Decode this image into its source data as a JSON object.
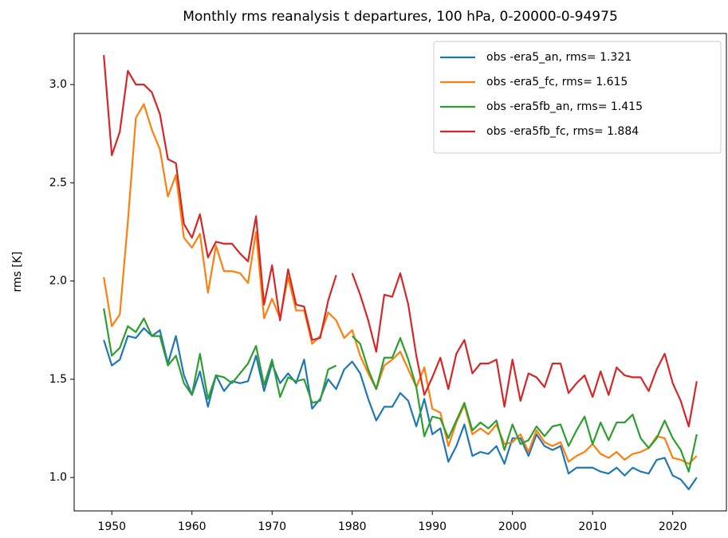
{
  "chart_data": {
    "type": "line",
    "title": "Monthly rms reanalysis t departures, 100 hPa, 0-20000-0-94975",
    "y_label": "rms [K]",
    "x": [
      1949,
      1950,
      1951,
      1952,
      1953,
      1954,
      1955,
      1956,
      1957,
      1958,
      1959,
      1960,
      1961,
      1962,
      1963,
      1964,
      1965,
      1966,
      1967,
      1968,
      1969,
      1970,
      1971,
      1972,
      1973,
      1974,
      1975,
      1976,
      1977,
      1978,
      1979,
      1980,
      1981,
      1982,
      1983,
      1984,
      1985,
      1986,
      1987,
      1988,
      1989,
      1990,
      1991,
      1992,
      1993,
      1994,
      1995,
      1996,
      1997,
      1998,
      1999,
      2000,
      2001,
      2002,
      2003,
      2004,
      2005,
      2006,
      2007,
      2008,
      2009,
      2010,
      2011,
      2012,
      2013,
      2014,
      2015,
      2016,
      2017,
      2018,
      2019,
      2020,
      2021,
      2022,
      2023
    ],
    "series": [
      {
        "name": "obs -era5_an, rms= 1.321",
        "color": "#1f77b4",
        "values": [
          1.7,
          1.57,
          1.6,
          1.72,
          1.71,
          1.76,
          1.72,
          1.75,
          1.58,
          1.72,
          1.52,
          1.42,
          1.54,
          1.36,
          1.52,
          1.44,
          1.49,
          1.48,
          1.49,
          1.62,
          1.44,
          1.58,
          1.48,
          1.53,
          1.48,
          1.6,
          1.35,
          1.4,
          1.5,
          1.45,
          1.55,
          1.59,
          1.53,
          1.4,
          1.29,
          1.36,
          1.36,
          1.43,
          1.39,
          1.26,
          1.4,
          1.22,
          1.25,
          1.08,
          1.16,
          1.27,
          1.11,
          1.13,
          1.12,
          1.16,
          1.07,
          1.2,
          1.2,
          1.11,
          1.22,
          1.16,
          1.14,
          1.16,
          1.02,
          1.05,
          1.05,
          1.05,
          1.03,
          1.02,
          1.05,
          1.01,
          1.05,
          1.03,
          1.02,
          1.09,
          1.1,
          1.01,
          0.99,
          0.94,
          1.0
        ]
      },
      {
        "name": "obs -era5_fc, rms= 1.615",
        "color": "#ff7f0e",
        "values": [
          2.02,
          1.77,
          1.83,
          2.3,
          2.83,
          2.9,
          2.77,
          2.67,
          2.43,
          2.54,
          2.22,
          2.17,
          2.24,
          1.94,
          2.18,
          2.05,
          2.05,
          2.04,
          1.99,
          2.25,
          1.81,
          1.91,
          1.81,
          2.02,
          1.85,
          1.85,
          1.68,
          1.72,
          1.84,
          1.8,
          1.71,
          1.75,
          1.62,
          1.53,
          1.45,
          1.57,
          1.6,
          1.64,
          1.55,
          1.46,
          1.56,
          1.35,
          1.33,
          1.16,
          1.28,
          1.37,
          1.22,
          1.25,
          1.22,
          1.27,
          1.17,
          1.18,
          1.22,
          1.13,
          1.24,
          1.18,
          1.16,
          1.18,
          1.08,
          1.11,
          1.13,
          1.17,
          1.12,
          1.1,
          1.13,
          1.09,
          1.12,
          1.13,
          1.15,
          1.21,
          1.2,
          1.1,
          1.09,
          1.07,
          1.11
        ]
      },
      {
        "name": "obs -era5fb_an, rms= 1.415",
        "color": "#2ca02c",
        "values": [
          1.86,
          1.62,
          1.66,
          1.77,
          1.74,
          1.81,
          1.72,
          1.72,
          1.57,
          1.62,
          1.48,
          1.42,
          1.63,
          1.4,
          1.52,
          1.51,
          1.48,
          1.53,
          1.58,
          1.67,
          1.47,
          1.6,
          1.41,
          1.51,
          1.49,
          1.5,
          1.38,
          1.39,
          1.55,
          1.57,
          null,
          1.72,
          1.68,
          1.55,
          1.45,
          1.61,
          1.61,
          1.71,
          1.6,
          1.46,
          1.21,
          1.31,
          1.3,
          1.2,
          1.29,
          1.38,
          1.24,
          1.28,
          1.25,
          1.29,
          1.14,
          1.27,
          1.17,
          1.19,
          1.26,
          1.21,
          1.26,
          1.27,
          1.16,
          1.24,
          1.31,
          1.17,
          1.28,
          1.19,
          1.28,
          1.28,
          1.32,
          1.2,
          1.15,
          1.2,
          1.29,
          1.2,
          1.14,
          1.03,
          1.22
        ]
      },
      {
        "name": "obs -era5fb_fc, rms= 1.884",
        "color": "#d62728",
        "values": [
          3.15,
          2.64,
          2.76,
          3.07,
          3.0,
          3.0,
          2.96,
          2.85,
          2.62,
          2.6,
          2.29,
          2.22,
          2.34,
          2.12,
          2.2,
          2.19,
          2.19,
          2.14,
          2.1,
          2.33,
          1.88,
          2.08,
          1.8,
          2.06,
          1.88,
          1.87,
          1.7,
          1.71,
          1.9,
          2.03,
          null,
          2.04,
          1.93,
          1.8,
          1.64,
          1.93,
          1.92,
          2.04,
          1.88,
          1.62,
          1.42,
          1.51,
          1.61,
          1.45,
          1.63,
          1.7,
          1.53,
          1.58,
          1.58,
          1.6,
          1.36,
          1.6,
          1.39,
          1.53,
          1.51,
          1.46,
          1.58,
          1.58,
          1.43,
          1.48,
          1.52,
          1.41,
          1.54,
          1.42,
          1.56,
          1.52,
          1.51,
          1.51,
          1.44,
          1.55,
          1.63,
          1.48,
          1.39,
          1.26,
          1.49
        ]
      }
    ],
    "xlim": [
      1945.3,
      2026.7
    ],
    "xticks": [
      1950,
      1960,
      1970,
      1980,
      1990,
      2000,
      2010,
      2020
    ],
    "ylim": [
      0.83,
      3.26
    ],
    "yticks": [
      {
        "value": 1.0,
        "label": "1.0"
      },
      {
        "value": 1.5,
        "label": "1.5"
      },
      {
        "value": 2.0,
        "label": "2.0"
      },
      {
        "value": 2.5,
        "label": "2.5"
      },
      {
        "value": 3.0,
        "label": "3.0"
      }
    ],
    "grid": false,
    "legend": "upper right"
  }
}
